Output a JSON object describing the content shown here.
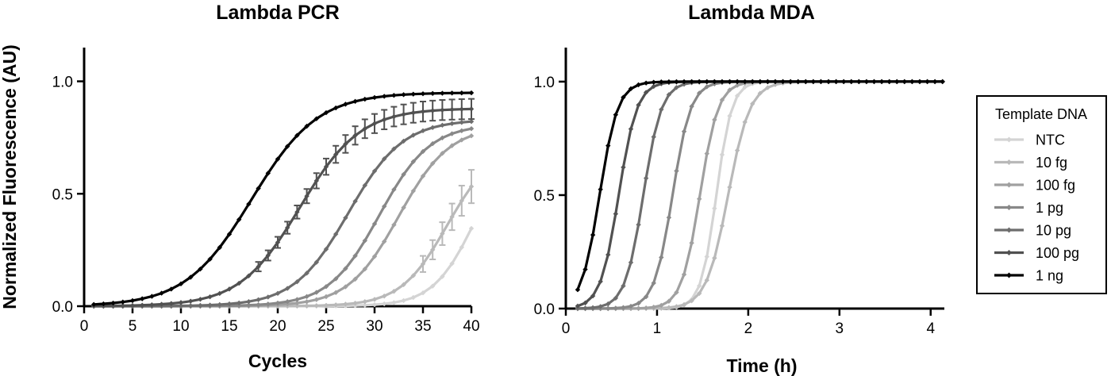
{
  "chart_data": [
    {
      "type": "line",
      "title": "Lambda PCR",
      "xlabel": "Cycles",
      "ylabel": "Normalized Fluorescence (AU)",
      "xlim": [
        0,
        40
      ],
      "ylim": [
        0,
        1.15
      ],
      "xticks": [
        "0",
        "5",
        "10",
        "15",
        "20",
        "25",
        "30",
        "35",
        "40"
      ],
      "yticks": [
        "0.0",
        "0.5",
        "1.0"
      ],
      "grid": false,
      "legend": "none",
      "model": "sigmoid: y = plateau / (1 + exp(-(x - midpoint) / slope)), sampled every cycle from 1 to 40",
      "series": [
        {
          "color": "#d4d4d4",
          "midpoint": 40.5,
          "slope": 2.2,
          "plateau": 0.78
        },
        {
          "color": "#b9b9b9",
          "midpoint": 37.5,
          "slope": 2.4,
          "plateau": 0.72,
          "error_bars": true
        },
        {
          "color": "#a0a0a0",
          "midpoint": 32.5,
          "slope": 2.6,
          "plateau": 0.8
        },
        {
          "color": "#888888",
          "midpoint": 30.5,
          "slope": 2.6,
          "plateau": 0.81
        },
        {
          "color": "#6d6d6d",
          "midpoint": 27.3,
          "slope": 2.8,
          "plateau": 0.83
        },
        {
          "color": "#515151",
          "midpoint": 22.3,
          "slope": 3.1,
          "plateau": 0.88,
          "error_bars": true
        },
        {
          "color": "#000000",
          "midpoint": 17.3,
          "slope": 3.4,
          "plateau": 0.95
        }
      ]
    },
    {
      "type": "line",
      "title": "Lambda MDA",
      "xlabel": "Time (h)",
      "ylabel": "",
      "xlim": [
        0,
        4.15
      ],
      "ylim": [
        0,
        1.15
      ],
      "xticks": [
        "0",
        "1",
        "2",
        "3",
        "4"
      ],
      "yticks": [
        "0.0",
        "0.5",
        "1.0"
      ],
      "grid": false,
      "legend": "right",
      "legend_title": "Template DNA",
      "model": "sigmoid: y = 1 / (1 + exp(-(x - midpoint) / slope)), sampled every 0.0833 h from 0.13 to 4.13",
      "series": [
        {
          "name": "NTC",
          "color": "#d4d4d4",
          "midpoint": 1.65,
          "slope": 0.085
        },
        {
          "name": "10 fg",
          "color": "#b9b9b9",
          "midpoint": 1.78,
          "slope": 0.12
        },
        {
          "name": "100 fg",
          "color": "#a0a0a0",
          "midpoint": 1.47,
          "slope": 0.1
        },
        {
          "name": "1 pg",
          "color": "#888888",
          "midpoint": 1.17,
          "slope": 0.1
        },
        {
          "name": "10 pg",
          "color": "#6d6d6d",
          "midpoint": 0.85,
          "slope": 0.1
        },
        {
          "name": "100 pg",
          "color": "#515151",
          "midpoint": 0.58,
          "slope": 0.1
        },
        {
          "name": "1 ng",
          "color": "#000000",
          "midpoint": 0.37,
          "slope": 0.1
        }
      ]
    }
  ]
}
